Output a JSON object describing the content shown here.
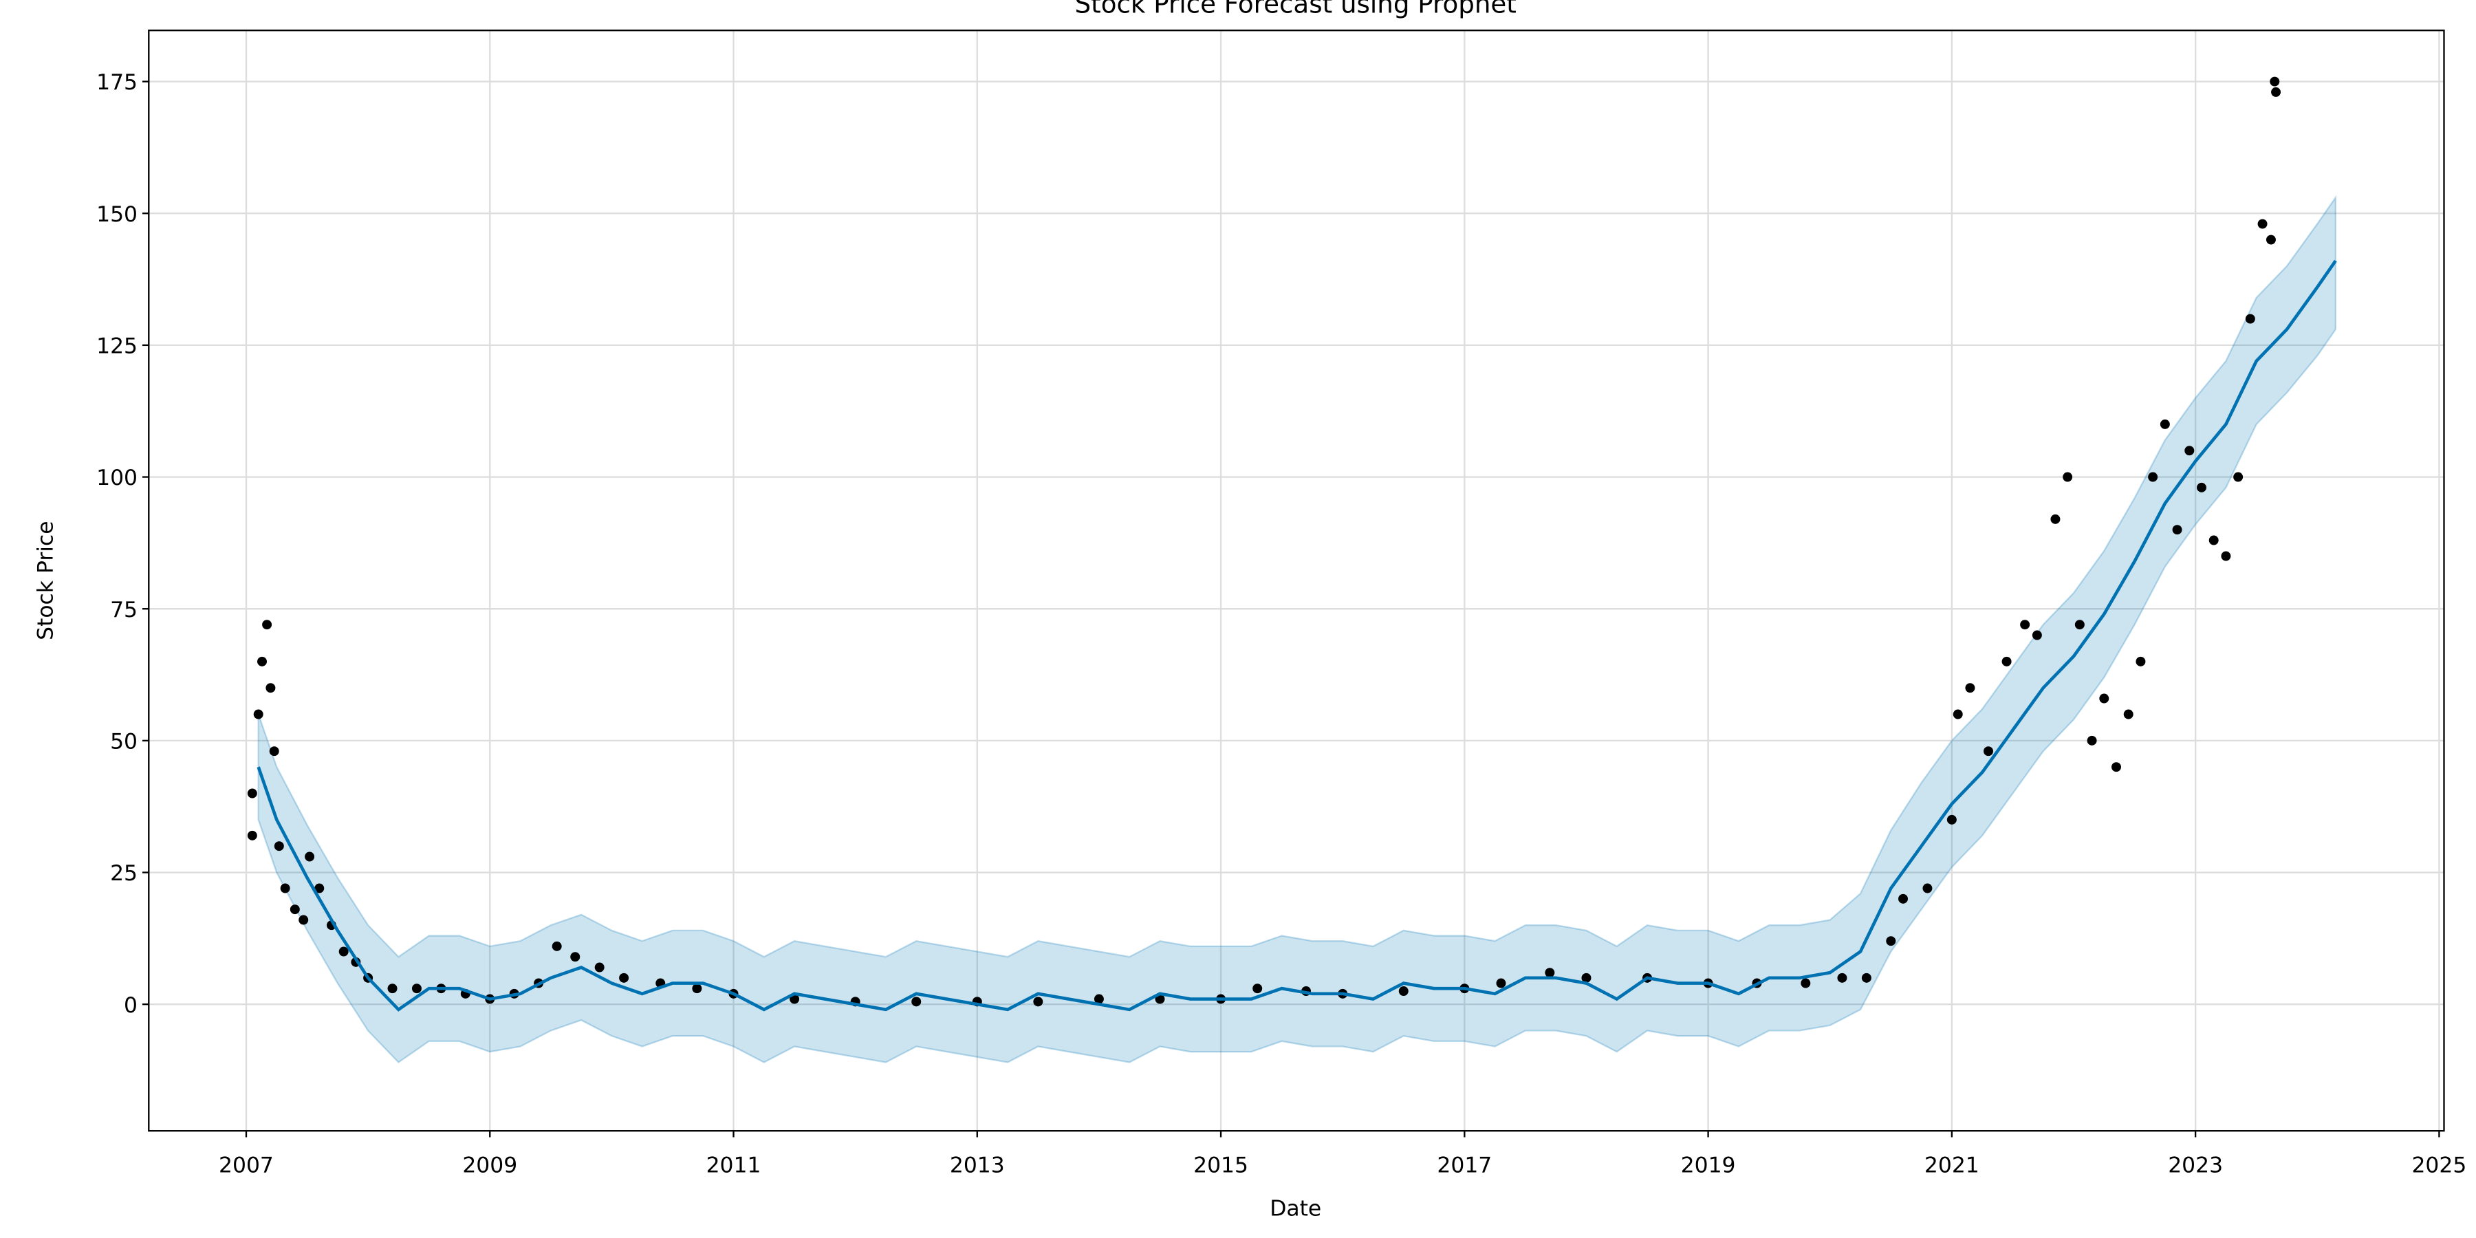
{
  "chart_data": {
    "type": "line",
    "title": "Stock Price Forecast using Prophet",
    "xlabel": "Date",
    "ylabel": "Stock Price",
    "xlim": [
      2006.2,
      2025.04
    ],
    "ylim": [
      -24,
      184.7
    ],
    "xticks": [
      2007,
      2009,
      2011,
      2013,
      2015,
      2017,
      2019,
      2021,
      2023,
      2025
    ],
    "yticks": [
      0,
      25,
      50,
      75,
      100,
      125,
      150,
      175
    ],
    "grid": true,
    "x": [
      2007.1,
      2007.25,
      2007.5,
      2007.75,
      2008.0,
      2008.25,
      2008.5,
      2008.75,
      2009.0,
      2009.25,
      2009.5,
      2009.75,
      2010.0,
      2010.25,
      2010.5,
      2010.75,
      2011.0,
      2011.25,
      2011.5,
      2011.75,
      2012.0,
      2012.25,
      2012.5,
      2012.75,
      2013.0,
      2013.25,
      2013.5,
      2013.75,
      2014.0,
      2014.25,
      2014.5,
      2014.75,
      2015.0,
      2015.25,
      2015.5,
      2015.75,
      2016.0,
      2016.25,
      2016.5,
      2016.75,
      2017.0,
      2017.25,
      2017.5,
      2017.75,
      2018.0,
      2018.25,
      2018.5,
      2018.75,
      2019.0,
      2019.25,
      2019.5,
      2019.75,
      2020.0,
      2020.25,
      2020.5,
      2020.75,
      2021.0,
      2021.25,
      2021.5,
      2021.75,
      2022.0,
      2022.25,
      2022.5,
      2022.75,
      2023.0,
      2023.25,
      2023.5,
      2023.75,
      2024.0,
      2024.15
    ],
    "series": [
      {
        "color": "#0072b2",
        "values": [
          45,
          35,
          24,
          14,
          5,
          -1,
          3,
          3,
          1,
          2,
          5,
          7,
          4,
          2,
          4,
          4,
          2,
          -1,
          2,
          1,
          0,
          -1,
          2,
          1,
          0,
          -1,
          2,
          1,
          0,
          -1,
          2,
          1,
          1,
          1,
          3,
          2,
          2,
          1,
          4,
          3,
          3,
          2,
          5,
          5,
          4,
          1,
          5,
          4,
          4,
          2,
          5,
          5,
          6,
          10,
          22,
          30,
          38,
          44,
          52,
          60,
          66,
          74,
          84,
          95,
          103,
          110,
          122,
          128,
          136,
          141
        ]
      }
    ],
    "band": {
      "color": "#0072b2",
      "lower": [
        35,
        25,
        14,
        4,
        -5,
        -11,
        -7,
        -7,
        -9,
        -8,
        -5,
        -3,
        -6,
        -8,
        -6,
        -6,
        -8,
        -11,
        -8,
        -9,
        -10,
        -11,
        -8,
        -9,
        -10,
        -11,
        -8,
        -9,
        -10,
        -11,
        -8,
        -9,
        -9,
        -9,
        -7,
        -8,
        -8,
        -9,
        -6,
        -7,
        -7,
        -8,
        -5,
        -5,
        -6,
        -9,
        -5,
        -6,
        -6,
        -8,
        -5,
        -5,
        -4,
        -1,
        10,
        18,
        26,
        32,
        40,
        48,
        54,
        62,
        72,
        83,
        91,
        98,
        110,
        116,
        123,
        128
      ],
      "upper": [
        55,
        45,
        34,
        24,
        15,
        9,
        13,
        13,
        11,
        12,
        15,
        17,
        14,
        12,
        14,
        14,
        12,
        9,
        12,
        11,
        10,
        9,
        12,
        11,
        10,
        9,
        12,
        11,
        10,
        9,
        12,
        11,
        11,
        11,
        13,
        12,
        12,
        11,
        14,
        13,
        13,
        12,
        15,
        15,
        14,
        11,
        15,
        14,
        14,
        12,
        15,
        15,
        16,
        21,
        33,
        42,
        50,
        56,
        64,
        72,
        78,
        86,
        96,
        107,
        115,
        122,
        134,
        140,
        148,
        153
      ]
    },
    "points": {
      "color": "#000000",
      "x": [
        2007.05,
        2007.05,
        2007.1,
        2007.13,
        2007.17,
        2007.2,
        2007.23,
        2007.27,
        2007.32,
        2007.4,
        2007.47,
        2007.52,
        2007.6,
        2007.7,
        2007.8,
        2007.9,
        2008.0,
        2008.2,
        2008.4,
        2008.6,
        2008.8,
        2009.0,
        2009.2,
        2009.4,
        2009.55,
        2009.7,
        2009.9,
        2010.1,
        2010.4,
        2010.7,
        2011.0,
        2011.5,
        2012.0,
        2012.5,
        2013.0,
        2013.5,
        2014.0,
        2014.5,
        2015.0,
        2015.3,
        2015.7,
        2016.0,
        2016.5,
        2017.0,
        2017.3,
        2017.7,
        2018.0,
        2018.5,
        2019.0,
        2019.4,
        2019.8,
        2020.1,
        2020.3,
        2020.5,
        2020.6,
        2020.8,
        2021.0,
        2021.05,
        2021.15,
        2021.3,
        2021.45,
        2021.6,
        2021.7,
        2021.85,
        2021.95,
        2022.05,
        2022.15,
        2022.25,
        2022.35,
        2022.45,
        2022.55,
        2022.65,
        2022.75,
        2022.85,
        2022.95,
        2023.05,
        2023.15,
        2023.25,
        2023.35,
        2023.45,
        2023.55,
        2023.62,
        2023.65,
        2023.66
      ],
      "values": [
        32,
        40,
        55,
        65,
        72,
        60,
        48,
        30,
        22,
        18,
        16,
        28,
        22,
        15,
        10,
        8,
        5,
        3,
        3,
        3,
        2,
        1,
        2,
        4,
        11,
        9,
        7,
        5,
        4,
        3,
        2,
        1,
        0.5,
        0.5,
        0.5,
        0.5,
        1,
        1,
        1,
        3,
        2.5,
        2,
        2.5,
        3,
        4,
        6,
        5,
        5,
        4,
        4,
        4,
        5,
        5,
        12,
        20,
        22,
        35,
        55,
        60,
        48,
        65,
        72,
        70,
        92,
        100,
        72,
        50,
        58,
        45,
        55,
        65,
        100,
        110,
        90,
        105,
        98,
        88,
        85,
        100,
        130,
        148,
        145,
        175,
        173
      ]
    }
  }
}
